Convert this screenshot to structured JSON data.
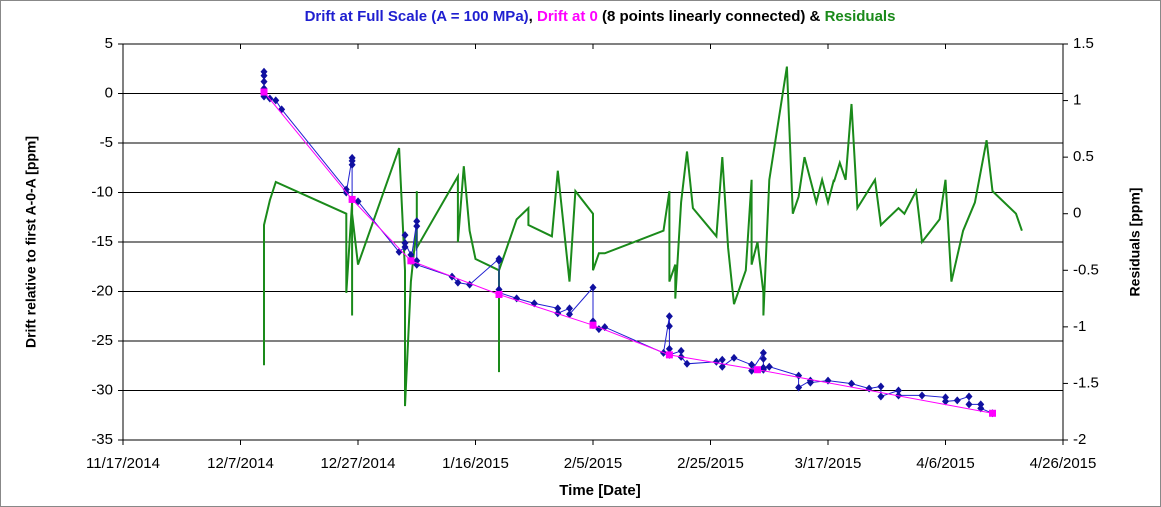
{
  "chart_data": {
    "type": "line",
    "title_parts": [
      {
        "text": "Drift at Full Scale (A = 100 MPa)",
        "color": "#1f1fd0"
      },
      {
        "text": ", ",
        "color": "#000000"
      },
      {
        "text": "Drift at 0",
        "color": "#ff00ff"
      },
      {
        "text": " (8 points linearly connected) & ",
        "color": "#000000"
      },
      {
        "text": "Residuals",
        "color": "#1a8a1a"
      }
    ],
    "xlabel": "Time [Date]",
    "ylabel": "Drift relative to first A-0-A [ppm]",
    "y2label": "Residuals [ppm]",
    "y2label_color": "#1a8a1a",
    "xlim": [
      "11/17/2014",
      "4/26/2015"
    ],
    "xticks": [
      "11/17/2014",
      "12/7/2014",
      "12/27/2014",
      "1/16/2015",
      "2/5/2015",
      "2/25/2015",
      "3/17/2015",
      "4/6/2015",
      "4/26/2015"
    ],
    "ylim": [
      -35,
      5
    ],
    "yticks": [
      5,
      0,
      -5,
      -10,
      -15,
      -20,
      -25,
      -30,
      -35
    ],
    "y2lim": [
      -2,
      1.5
    ],
    "y2ticks": [
      1.5,
      1,
      0.5,
      0,
      -0.5,
      -1,
      -1.5,
      -2
    ],
    "grid": true,
    "series": [
      {
        "color": "#1a8a1a",
        "axis": "y2",
        "marker": "none",
        "width": 2,
        "x": [
          "12/11/2014",
          "12/11/2014",
          "12/11/2014",
          "12/12/2014",
          "12/13/2014",
          "12/25/2014",
          "12/25/2014",
          "12/26/2014",
          "12/26/2014",
          "12/26/2014",
          "12/26/2014",
          "12/27/2014",
          "1/3/2015",
          "1/4/2015",
          "1/4/2015",
          "1/5/2015",
          "1/6/2015",
          "1/6/2015",
          "1/6/2015",
          "1/13/2015",
          "1/13/2015",
          "1/14/2015",
          "1/15/2015",
          "1/16/2015",
          "1/20/2015",
          "1/20/2015",
          "1/20/2015",
          "1/22/2015",
          "1/23/2015",
          "1/25/2015",
          "1/25/2015",
          "1/29/2015",
          "1/30/2015",
          "2/1/2015",
          "2/2/2015",
          "2/5/2015",
          "2/5/2015",
          "2/6/2015",
          "2/7/2015",
          "2/17/2015",
          "2/18/2015",
          "2/18/2015",
          "2/19/2015",
          "2/19/2015",
          "2/20/2015",
          "2/21/2015",
          "2/22/2015",
          "2/26/2015",
          "2/27/2015",
          "2/28/2015",
          "3/1/2015",
          "3/3/2015",
          "3/4/2015",
          "3/4/2015",
          "3/5/2015",
          "3/6/2015",
          "3/6/2015",
          "3/7/2015",
          "3/10/2015",
          "3/11/2015",
          "3/12/2015",
          "3/13/2015",
          "3/15/2015",
          "3/16/2015",
          "3/17/2015",
          "3/18/2015",
          "3/18/2015",
          "3/19/2015",
          "3/20/2015",
          "3/21/2015",
          "3/22/2015",
          "3/25/2015",
          "3/26/2015",
          "3/29/2015",
          "3/30/2015",
          "4/1/2015",
          "4/2/2015",
          "4/5/2015",
          "4/6/2015",
          "4/7/2015",
          "4/9/2015",
          "4/11/2015",
          "4/13/2015",
          "4/14/2015",
          "4/18/2015",
          "4/19/2015"
        ],
        "values": [
          -0.3,
          -1.34,
          -0.1,
          0.12,
          0.28,
          0.0,
          -0.7,
          0.1,
          -0.3,
          -0.9,
          0.0,
          -0.45,
          0.58,
          -0.5,
          -1.7,
          -0.6,
          -0.1,
          0.2,
          -0.3,
          0.33,
          -0.25,
          0.42,
          -0.15,
          -0.4,
          -0.5,
          -1.4,
          -0.5,
          -0.2,
          -0.05,
          0.05,
          -0.1,
          -0.2,
          0.38,
          -0.6,
          0.2,
          0.0,
          -0.5,
          -0.35,
          -0.35,
          -0.15,
          0.2,
          -0.6,
          -0.45,
          -0.75,
          0.1,
          0.55,
          0.05,
          -0.2,
          0.5,
          -0.3,
          -0.8,
          -0.5,
          0.3,
          -0.45,
          -0.25,
          -0.7,
          -0.9,
          0.3,
          1.3,
          0.0,
          0.15,
          0.5,
          0.1,
          0.3,
          0.1,
          0.3,
          0.28,
          0.45,
          0.3,
          0.97,
          0.05,
          0.3,
          -0.1,
          0.05,
          0.0,
          0.2,
          -0.25,
          -0.05,
          0.3,
          -0.6,
          -0.15,
          0.1,
          0.65,
          0.2,
          0.0,
          -0.15
        ]
      },
      {
        "color": "#1f1fd0",
        "axis": "y",
        "marker": "diamond",
        "marker_color": "#1010a0",
        "width": 1,
        "x": [
          "12/11/2014",
          "12/11/2014",
          "12/11/2014",
          "12/11/2014",
          "12/11/2014",
          "12/11/2014",
          "12/11/2014",
          "12/12/2014",
          "12/13/2014",
          "12/14/2014",
          "12/25/2014",
          "12/25/2014",
          "12/26/2014",
          "12/26/2014",
          "12/26/2014",
          "12/26/2014",
          "12/27/2014",
          "1/3/2015",
          "1/4/2015",
          "1/4/2015",
          "1/4/2015",
          "1/5/2015",
          "1/5/2015",
          "1/6/2015",
          "1/6/2015",
          "1/6/2015",
          "1/6/2015",
          "1/12/2015",
          "1/13/2015",
          "1/15/2015",
          "1/20/2015",
          "1/20/2015",
          "1/20/2015",
          "1/20/2015",
          "1/23/2015",
          "1/26/2015",
          "1/30/2015",
          "1/30/2015",
          "2/1/2015",
          "2/1/2015",
          "2/5/2015",
          "2/5/2015",
          "2/5/2015",
          "2/6/2015",
          "2/7/2015",
          "2/17/2015",
          "2/18/2015",
          "2/18/2015",
          "2/18/2015",
          "2/18/2015",
          "2/20/2015",
          "2/20/2015",
          "2/21/2015",
          "2/26/2015",
          "2/27/2015",
          "2/27/2015",
          "3/1/2015",
          "3/4/2015",
          "3/4/2015",
          "3/6/2015",
          "3/6/2015",
          "3/6/2015",
          "3/6/2015",
          "3/7/2015",
          "3/12/2015",
          "3/12/2015",
          "3/14/2015",
          "3/14/2015",
          "3/17/2015",
          "3/21/2015",
          "3/24/2015",
          "3/26/2015",
          "3/26/2015",
          "3/29/2015",
          "3/29/2015",
          "4/2/2015",
          "4/6/2015",
          "4/6/2015",
          "4/8/2015",
          "4/10/2015",
          "4/10/2015",
          "4/12/2015",
          "4/12/2015",
          "4/14/2015"
        ],
        "values": [
          2.2,
          1.8,
          1.2,
          0.5,
          0.2,
          -0.1,
          -0.3,
          -0.5,
          -0.7,
          -1.6,
          -9.7,
          -10.0,
          -6.5,
          -6.8,
          -7.2,
          -10.7,
          -10.9,
          -16.0,
          -15.5,
          -14.3,
          -15.1,
          -16.3,
          -16.9,
          -12.9,
          -13.4,
          -16.9,
          -17.3,
          -18.5,
          -19.1,
          -19.3,
          -16.7,
          -16.9,
          -19.8,
          -20.1,
          -20.7,
          -21.2,
          -21.7,
          -22.2,
          -21.7,
          -22.3,
          -19.6,
          -23.0,
          -23.4,
          -23.8,
          -23.6,
          -26.2,
          -22.5,
          -23.5,
          -25.8,
          -26.4,
          -26.0,
          -26.6,
          -27.3,
          -27.1,
          -26.9,
          -27.6,
          -26.7,
          -27.4,
          -28.0,
          -26.2,
          -26.8,
          -27.7,
          -27.9,
          -27.6,
          -28.5,
          -29.7,
          -29.0,
          -29.2,
          -29.0,
          -29.3,
          -29.8,
          -29.6,
          -30.6,
          -30.0,
          -30.5,
          -30.5,
          -30.7,
          -31.1,
          -31.0,
          -30.6,
          -31.4,
          -31.4,
          -31.8,
          -32.3
        ]
      },
      {
        "color": "#ff00ff",
        "axis": "y",
        "marker": "square",
        "marker_color": "#ff00ff",
        "width": 1,
        "x": [
          "12/11/2014",
          "12/26/2014",
          "1/5/2015",
          "1/20/2015",
          "2/5/2015",
          "2/18/2015",
          "3/5/2015",
          "4/14/2015"
        ],
        "values": [
          0.15,
          -10.7,
          -16.9,
          -20.3,
          -23.4,
          -26.4,
          -27.9,
          -32.3
        ]
      }
    ]
  }
}
